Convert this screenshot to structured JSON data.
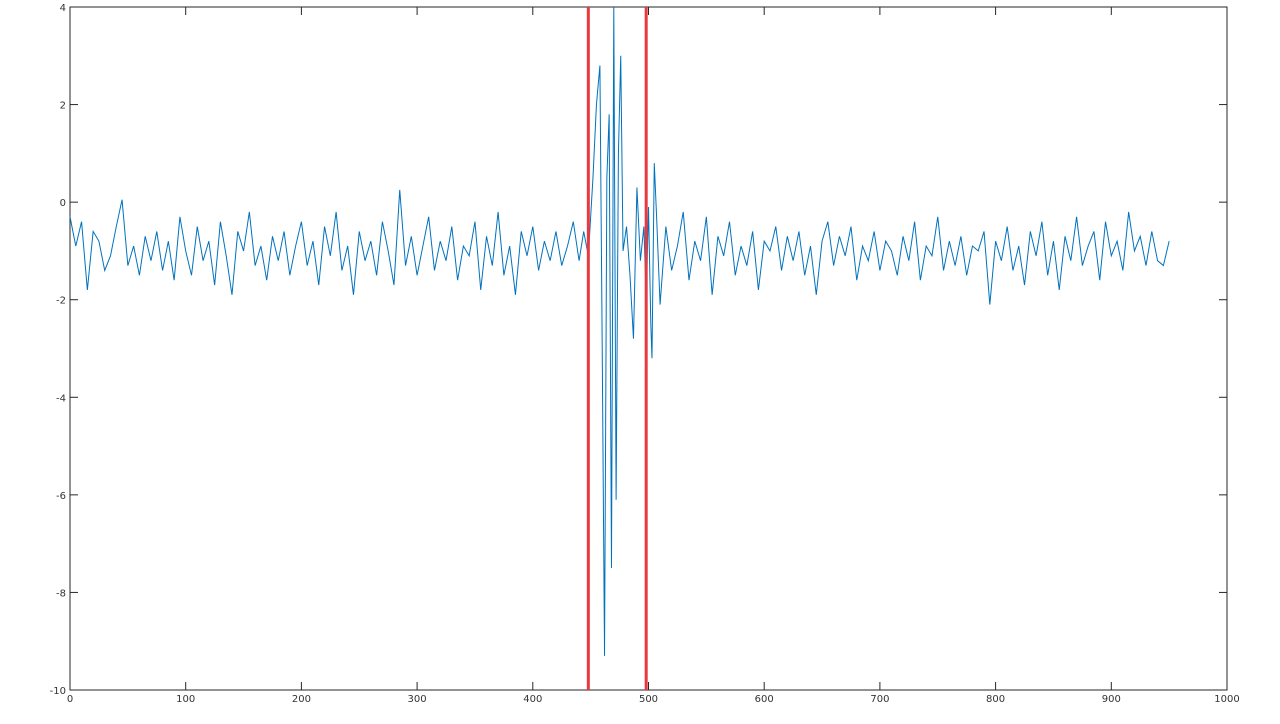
{
  "chart_data": {
    "type": "line",
    "x": [
      0,
      5,
      10,
      15,
      20,
      25,
      30,
      35,
      40,
      45,
      50,
      55,
      60,
      65,
      70,
      75,
      80,
      85,
      90,
      95,
      100,
      105,
      110,
      115,
      120,
      125,
      130,
      135,
      140,
      145,
      150,
      155,
      160,
      165,
      170,
      175,
      180,
      185,
      190,
      195,
      200,
      205,
      210,
      215,
      220,
      225,
      230,
      235,
      240,
      245,
      250,
      255,
      260,
      265,
      270,
      275,
      280,
      285,
      290,
      295,
      300,
      305,
      310,
      315,
      320,
      325,
      330,
      335,
      340,
      345,
      350,
      355,
      360,
      365,
      370,
      375,
      380,
      385,
      390,
      395,
      400,
      405,
      410,
      415,
      420,
      425,
      430,
      435,
      440,
      444,
      448,
      452,
      455,
      458,
      460,
      462,
      464,
      466,
      468,
      470,
      472,
      474,
      476,
      478,
      481,
      484,
      487,
      490,
      493,
      496,
      498,
      500,
      502,
      503,
      505,
      507,
      510,
      515,
      520,
      525,
      530,
      535,
      540,
      545,
      550,
      555,
      560,
      565,
      570,
      575,
      580,
      585,
      590,
      595,
      600,
      605,
      610,
      615,
      620,
      625,
      630,
      635,
      640,
      645,
      650,
      655,
      660,
      665,
      670,
      675,
      680,
      685,
      690,
      695,
      700,
      705,
      710,
      715,
      720,
      725,
      730,
      735,
      740,
      745,
      750,
      755,
      760,
      765,
      770,
      775,
      780,
      785,
      790,
      795,
      800,
      805,
      810,
      815,
      820,
      825,
      830,
      835,
      840,
      845,
      850,
      855,
      860,
      865,
      870,
      875,
      880,
      885,
      890,
      895,
      900,
      905,
      910,
      915,
      920,
      925,
      930,
      935,
      940,
      945,
      950
    ],
    "series": [
      {
        "color": "#0072bd",
        "values": [
          -0.3,
          -0.9,
          -0.4,
          -1.8,
          -0.6,
          -0.8,
          -1.4,
          -1.1,
          -0.5,
          0.05,
          -1.3,
          -0.9,
          -1.5,
          -0.7,
          -1.2,
          -0.6,
          -1.4,
          -0.8,
          -1.6,
          -0.3,
          -1.0,
          -1.5,
          -0.5,
          -1.2,
          -0.8,
          -1.7,
          -0.4,
          -1.1,
          -1.9,
          -0.6,
          -1.0,
          -0.2,
          -1.3,
          -0.9,
          -1.6,
          -0.7,
          -1.2,
          -0.6,
          -1.5,
          -0.9,
          -0.4,
          -1.3,
          -0.8,
          -1.7,
          -0.5,
          -1.1,
          -0.2,
          -1.4,
          -0.9,
          -1.9,
          -0.6,
          -1.2,
          -0.8,
          -1.5,
          -0.4,
          -1.0,
          -1.7,
          0.25,
          -1.3,
          -0.7,
          -1.5,
          -0.9,
          -0.3,
          -1.4,
          -0.8,
          -1.2,
          -0.5,
          -1.6,
          -0.9,
          -1.1,
          -0.4,
          -1.8,
          -0.7,
          -1.3,
          -0.2,
          -1.5,
          -0.9,
          -1.9,
          -0.6,
          -1.1,
          -0.5,
          -1.4,
          -0.8,
          -1.2,
          -0.6,
          -1.3,
          -0.9,
          -0.4,
          -1.2,
          -0.6,
          -1.1,
          0.5,
          2.0,
          2.8,
          -3.0,
          -9.3,
          0.5,
          1.8,
          -7.5,
          4.0,
          -6.1,
          1.0,
          3.0,
          -1.0,
          -0.5,
          -1.5,
          -2.8,
          0.3,
          -1.2,
          -0.5,
          -2.0,
          -0.1,
          -2.5,
          -3.2,
          0.8,
          -0.3,
          -2.1,
          -0.5,
          -1.4,
          -0.9,
          -0.2,
          -1.6,
          -0.8,
          -1.2,
          -0.3,
          -1.9,
          -0.7,
          -1.1,
          -0.4,
          -1.5,
          -0.9,
          -1.3,
          -0.6,
          -1.8,
          -0.8,
          -1.0,
          -0.5,
          -1.4,
          -0.7,
          -1.2,
          -0.6,
          -1.5,
          -0.9,
          -1.9,
          -0.8,
          -0.4,
          -1.3,
          -0.7,
          -1.1,
          -0.5,
          -1.6,
          -0.9,
          -1.2,
          -0.6,
          -1.4,
          -0.8,
          -1.0,
          -1.5,
          -0.7,
          -1.2,
          -0.4,
          -1.6,
          -0.9,
          -1.1,
          -0.3,
          -1.4,
          -0.8,
          -1.3,
          -0.7,
          -1.5,
          -0.9,
          -1.0,
          -0.6,
          -2.1,
          -0.8,
          -1.2,
          -0.5,
          -1.4,
          -0.9,
          -1.7,
          -0.6,
          -1.1,
          -0.4,
          -1.5,
          -0.8,
          -1.8,
          -0.7,
          -1.2,
          -0.3,
          -1.3,
          -0.9,
          -0.6,
          -1.6,
          -0.4,
          -1.1,
          -0.8,
          -1.4,
          -0.2,
          -1.0,
          -0.7,
          -1.3,
          -0.6,
          -1.2,
          -1.3,
          -0.8
        ]
      }
    ],
    "vertical_lines": [
      448,
      498
    ],
    "vertical_line_color": "#e8393f",
    "xlim": [
      0,
      1000
    ],
    "xticks": [
      0,
      100,
      200,
      300,
      400,
      500,
      600,
      700,
      800,
      900,
      1000
    ],
    "ylim": [
      -10,
      4
    ],
    "yticks": [
      -10,
      -8,
      -6,
      -4,
      -2,
      0,
      2,
      4
    ]
  }
}
